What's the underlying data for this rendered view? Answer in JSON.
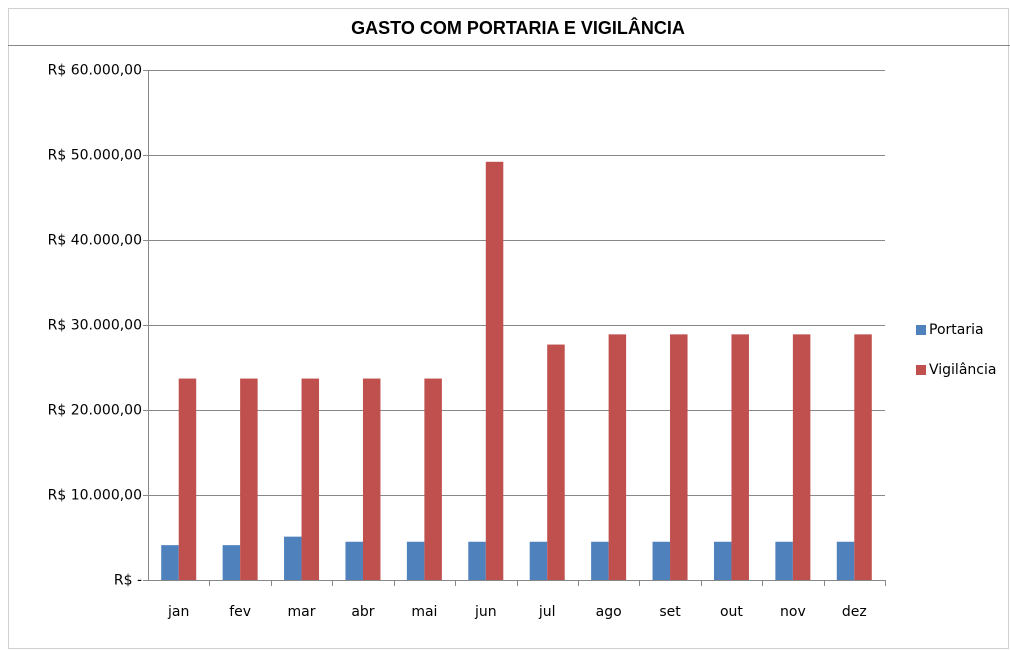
{
  "chart_data": {
    "type": "bar",
    "title": "GASTO COM PORTARIA E VIGILÂNCIA",
    "categories": [
      "jan",
      "fev",
      "mar",
      "abr",
      "mai",
      "jun",
      "jul",
      "ago",
      "set",
      "out",
      "nov",
      "dez"
    ],
    "series": [
      {
        "name": "Portaria",
        "color": "#4f81bd",
        "values": [
          4100,
          4100,
          5100,
          4500,
          4500,
          4500,
          4500,
          4500,
          4500,
          4500,
          4500,
          4500
        ]
      },
      {
        "name": "Vigilância",
        "color": "#c0504d",
        "values": [
          23700,
          23700,
          23700,
          23700,
          23700,
          49200,
          27700,
          28900,
          28900,
          28900,
          28900,
          28900
        ]
      }
    ],
    "ylim": [
      0,
      60000
    ],
    "yticks": [
      {
        "value": 0,
        "label": "R$ -"
      },
      {
        "value": 10000,
        "label": "R$ 10.000,00"
      },
      {
        "value": 20000,
        "label": "R$ 20.000,00"
      },
      {
        "value": 30000,
        "label": "R$ 30.000,00"
      },
      {
        "value": 40000,
        "label": "R$ 40.000,00"
      },
      {
        "value": 50000,
        "label": "R$ 50.000,00"
      },
      {
        "value": 60000,
        "label": "R$ 60.000,00"
      }
    ],
    "grid": true,
    "legend": "right"
  }
}
